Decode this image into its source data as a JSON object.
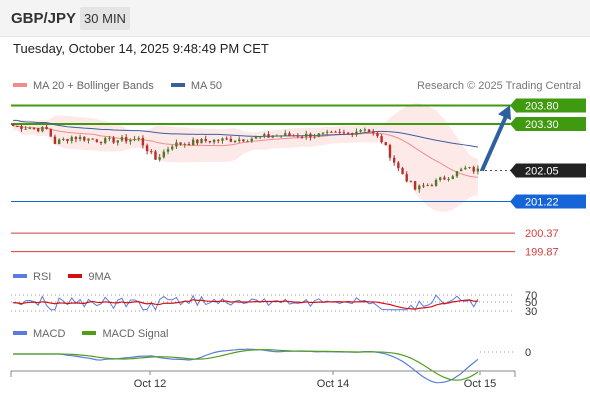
{
  "header": {
    "symbol": "GBP/JPY",
    "timeframe": "30 MIN"
  },
  "timestamp": "Tuesday, October 14, 2025 9:48:49 PM CET",
  "legend": {
    "ma20": "MA 20 + Bollinger Bands",
    "ma50": "MA 50"
  },
  "credit": "Research © 2025 Trading Central",
  "colors": {
    "up": "#4f7a2a",
    "down": "#b5302a",
    "ma20": "#f28c8c",
    "ma50": "#3a5f9e",
    "resistance": "#3f9a10",
    "support": "#1565d8",
    "pivot_low": "#d63c3c",
    "arrow": "#2e5fa0",
    "rsi": "#5b7be0",
    "rsi_ma": "#d11111",
    "macd": "#5b7be0",
    "macd_signal": "#4f9e1a"
  },
  "chart_data": [
    {
      "type": "candlestick",
      "series_name": "GBP/JPY",
      "x_tick_labels": [
        "Oct 12",
        "Oct 14",
        "Oct 15"
      ],
      "approx_range_y": [
        199.7,
        204.0
      ],
      "current_price": "202.05",
      "levels": [
        {
          "label": "203.80",
          "value": 203.8,
          "kind": "resistance"
        },
        {
          "label": "203.30",
          "value": 203.3,
          "kind": "resistance"
        },
        {
          "label": "202.05",
          "value": 202.05,
          "kind": "current"
        },
        {
          "label": "201.22",
          "value": 201.22,
          "kind": "support"
        },
        {
          "label": "200.37",
          "value": 200.37,
          "kind": "support-weak"
        },
        {
          "label": "199.87",
          "value": 199.87,
          "kind": "support-weak"
        }
      ],
      "projection": "arrow up toward 203.80",
      "overlays": [
        "MA 20 + Bollinger Bands",
        "MA 50"
      ]
    },
    {
      "type": "line",
      "title": "RSI",
      "series": [
        {
          "name": "RSI"
        },
        {
          "name": "9MA"
        }
      ],
      "y_tick_labels": [
        "70",
        "50",
        "30"
      ]
    },
    {
      "type": "line",
      "title": "MACD",
      "series": [
        {
          "name": "MACD"
        },
        {
          "name": "MACD Signal"
        }
      ],
      "y_tick_labels": [
        "0"
      ]
    }
  ],
  "rsi_legend": {
    "rsi": "RSI",
    "ma": "9MA"
  },
  "macd_legend": {
    "macd": "MACD",
    "signal": "MACD Signal"
  }
}
